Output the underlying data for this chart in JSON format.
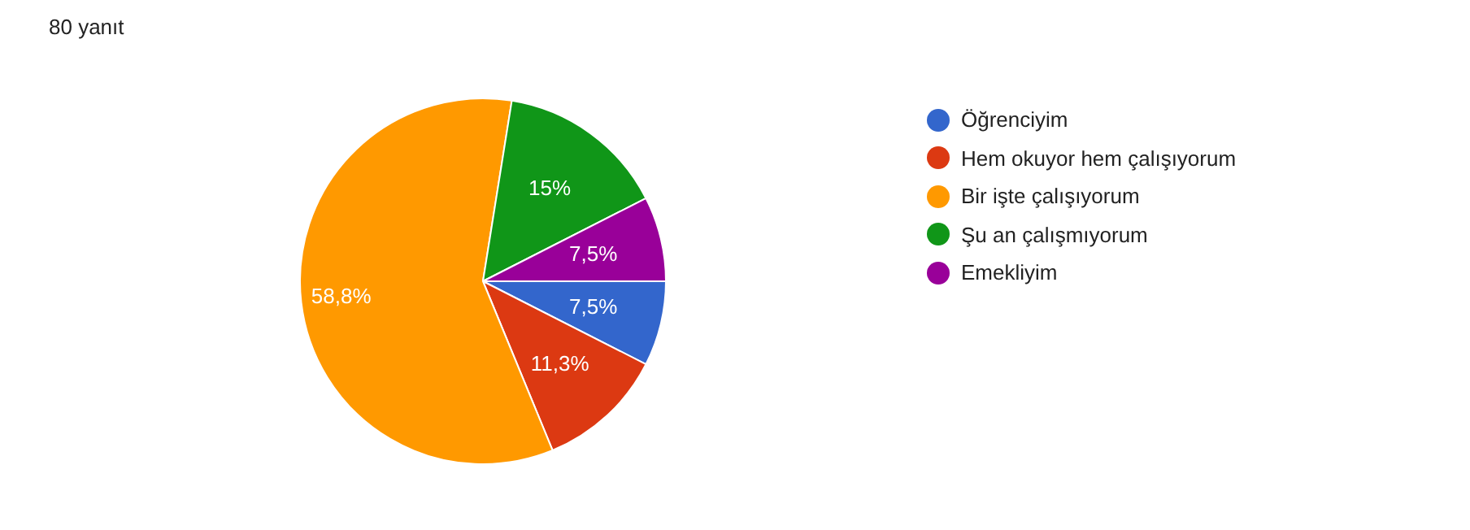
{
  "chart_data": {
    "type": "pie",
    "title": "80 yanıt",
    "categories": [
      "Öğrenciyim",
      "Hem okuyor hem çalışıyorum",
      "Bir işte çalışıyorum",
      "Şu an çalışmıyorum",
      "Emekliyim"
    ],
    "values": [
      7.5,
      11.3,
      58.8,
      15,
      7.5
    ],
    "colors": [
      "#3366cc",
      "#dc3912",
      "#ff9900",
      "#109618",
      "#990099"
    ],
    "value_labels": [
      "7,5%",
      "11,3%",
      "58,8%",
      "15%",
      "7,5%"
    ],
    "legend": "right"
  }
}
